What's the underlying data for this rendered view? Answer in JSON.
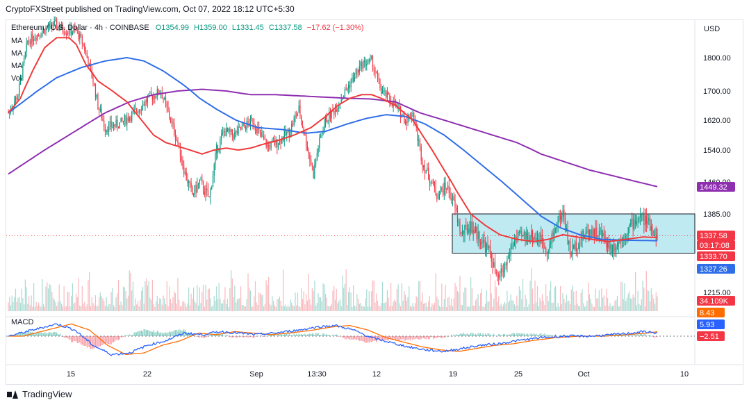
{
  "header": {
    "text": "CryptoFXStreet published on TradingView.com, Oct 07, 2022 18:12 UTC+5:30"
  },
  "legend": {
    "symbol": "Ethereum / U.S. Dollar · 4h · COINBASE",
    "open": "O1354.99",
    "high": "H1359.00",
    "low": "L1331.45",
    "close": "C1337.58",
    "change": "−17.62 (−1.30%)",
    "indicators": [
      "MA",
      "MA",
      "MA",
      "Vol"
    ]
  },
  "footer": {
    "brand": "TradingView"
  },
  "price_axis": {
    "currency": "USD"
  },
  "macd_label": "MACD",
  "colors": {
    "up": "#089981",
    "down": "#f23645",
    "ma_red": "#ef3a3a",
    "ma_blue": "#2f6ee8",
    "ma_purple": "#8e2fb0",
    "box_fill": "#bfeaf2",
    "macd_line": "#2962ff",
    "signal_line": "#ff6d00"
  },
  "chart_data": {
    "type": "candlestick",
    "ylim": [
      1180,
      1905
    ],
    "yticks": [
      "1800.00",
      "1700.00",
      "1620.00",
      "1540.00",
      "1460.00",
      "1385.00",
      "1215.00"
    ],
    "xticks": [
      "15",
      "22",
      "Sep",
      "13:30",
      "12",
      "19",
      "25",
      "Oct",
      "10"
    ],
    "price_tags": [
      {
        "label": "1449.32",
        "value": 1449.32,
        "color": "#8e2fb0"
      },
      {
        "label": "1337.58",
        "value": 1337.58,
        "color": "#f23645"
      },
      {
        "label": "03:17:08",
        "value": null,
        "color": "#f23645"
      },
      {
        "label": "1333.70",
        "value": 1333.7,
        "color": "#f23645"
      },
      {
        "label": "1327.26",
        "value": 1327.26,
        "color": "#2f6ee8"
      },
      {
        "label": "34.109K",
        "value": null,
        "color": "#f23645"
      }
    ],
    "macd_tags": [
      {
        "label": "8.43",
        "color": "#ff6d00"
      },
      {
        "label": "5.93",
        "color": "#2962ff"
      },
      {
        "label": "−2.51",
        "color": "#f23645"
      }
    ],
    "range_box": {
      "low": 1300,
      "high": 1385
    },
    "price_anchors": [
      [
        0,
        1640
      ],
      [
        8,
        1690
      ],
      [
        16,
        1850
      ],
      [
        28,
        1880
      ],
      [
        38,
        1900
      ],
      [
        48,
        1880
      ],
      [
        56,
        1880
      ],
      [
        62,
        1840
      ],
      [
        70,
        1730
      ],
      [
        74,
        1660
      ],
      [
        80,
        1600
      ],
      [
        92,
        1610
      ],
      [
        104,
        1640
      ],
      [
        116,
        1680
      ],
      [
        126,
        1700
      ],
      [
        134,
        1620
      ],
      [
        140,
        1560
      ],
      [
        146,
        1480
      ],
      [
        152,
        1430
      ],
      [
        158,
        1460
      ],
      [
        166,
        1420
      ],
      [
        172,
        1540
      ],
      [
        178,
        1590
      ],
      [
        186,
        1580
      ],
      [
        194,
        1600
      ],
      [
        202,
        1620
      ],
      [
        208,
        1580
      ],
      [
        214,
        1550
      ],
      [
        222,
        1560
      ],
      [
        232,
        1590
      ],
      [
        240,
        1650
      ],
      [
        246,
        1560
      ],
      [
        252,
        1480
      ],
      [
        256,
        1550
      ],
      [
        262,
        1620
      ],
      [
        270,
        1650
      ],
      [
        280,
        1710
      ],
      [
        292,
        1780
      ],
      [
        300,
        1790
      ],
      [
        308,
        1700
      ],
      [
        314,
        1680
      ],
      [
        322,
        1650
      ],
      [
        328,
        1620
      ],
      [
        334,
        1640
      ],
      [
        342,
        1510
      ],
      [
        348,
        1470
      ],
      [
        354,
        1430
      ],
      [
        362,
        1450
      ],
      [
        368,
        1410
      ],
      [
        374,
        1340
      ],
      [
        382,
        1360
      ],
      [
        390,
        1330
      ],
      [
        398,
        1300
      ],
      [
        404,
        1240
      ],
      [
        410,
        1270
      ],
      [
        418,
        1330
      ],
      [
        430,
        1340
      ],
      [
        440,
        1330
      ],
      [
        446,
        1305
      ],
      [
        452,
        1360
      ],
      [
        458,
        1390
      ],
      [
        464,
        1300
      ],
      [
        472,
        1330
      ],
      [
        480,
        1350
      ],
      [
        490,
        1340
      ],
      [
        498,
        1310
      ],
      [
        506,
        1330
      ],
      [
        514,
        1360
      ],
      [
        522,
        1380
      ],
      [
        530,
        1360
      ],
      [
        536,
        1336
      ]
    ],
    "ma_red_anchors": [
      [
        0,
        1640
      ],
      [
        10,
        1680
      ],
      [
        20,
        1760
      ],
      [
        30,
        1830
      ],
      [
        40,
        1860
      ],
      [
        50,
        1860
      ],
      [
        56,
        1840
      ],
      [
        64,
        1780
      ],
      [
        74,
        1730
      ],
      [
        86,
        1700
      ],
      [
        98,
        1670
      ],
      [
        110,
        1620
      ],
      [
        120,
        1580
      ],
      [
        130,
        1560
      ],
      [
        140,
        1550
      ],
      [
        150,
        1540
      ],
      [
        160,
        1530
      ],
      [
        170,
        1540
      ],
      [
        180,
        1545
      ],
      [
        190,
        1540
      ],
      [
        200,
        1545
      ],
      [
        210,
        1555
      ],
      [
        222,
        1565
      ],
      [
        236,
        1580
      ],
      [
        250,
        1600
      ],
      [
        262,
        1630
      ],
      [
        272,
        1660
      ],
      [
        282,
        1680
      ],
      [
        292,
        1690
      ],
      [
        300,
        1690
      ],
      [
        308,
        1680
      ],
      [
        320,
        1660
      ],
      [
        334,
        1620
      ],
      [
        346,
        1560
      ],
      [
        358,
        1500
      ],
      [
        370,
        1440
      ],
      [
        382,
        1385
      ],
      [
        394,
        1360
      ],
      [
        406,
        1340
      ],
      [
        420,
        1330
      ],
      [
        434,
        1325
      ],
      [
        446,
        1330
      ],
      [
        458,
        1340
      ],
      [
        470,
        1335
      ],
      [
        482,
        1330
      ],
      [
        496,
        1325
      ],
      [
        510,
        1330
      ],
      [
        524,
        1335
      ],
      [
        536,
        1334
      ]
    ],
    "ma_blue_anchors": [
      [
        0,
        1640
      ],
      [
        20,
        1690
      ],
      [
        40,
        1740
      ],
      [
        60,
        1770
      ],
      [
        80,
        1790
      ],
      [
        98,
        1800
      ],
      [
        112,
        1790
      ],
      [
        128,
        1760
      ],
      [
        144,
        1720
      ],
      [
        158,
        1680
      ],
      [
        172,
        1650
      ],
      [
        188,
        1620
      ],
      [
        206,
        1600
      ],
      [
        226,
        1595
      ],
      [
        246,
        1585
      ],
      [
        262,
        1590
      ],
      [
        280,
        1610
      ],
      [
        296,
        1625
      ],
      [
        312,
        1635
      ],
      [
        328,
        1630
      ],
      [
        344,
        1610
      ],
      [
        360,
        1580
      ],
      [
        376,
        1540
      ],
      [
        392,
        1500
      ],
      [
        408,
        1460
      ],
      [
        424,
        1420
      ],
      [
        440,
        1380
      ],
      [
        456,
        1355
      ],
      [
        472,
        1340
      ],
      [
        490,
        1330
      ],
      [
        510,
        1328
      ],
      [
        536,
        1327
      ]
    ],
    "ma_purple_anchors": [
      [
        0,
        1480
      ],
      [
        20,
        1520
      ],
      [
        40,
        1560
      ],
      [
        60,
        1600
      ],
      [
        80,
        1640
      ],
      [
        100,
        1670
      ],
      [
        120,
        1690
      ],
      [
        140,
        1700
      ],
      [
        160,
        1705
      ],
      [
        180,
        1700
      ],
      [
        200,
        1690
      ],
      [
        220,
        1690
      ],
      [
        250,
        1685
      ],
      [
        280,
        1680
      ],
      [
        300,
        1678
      ],
      [
        320,
        1670
      ],
      [
        340,
        1640
      ],
      [
        360,
        1620
      ],
      [
        380,
        1600
      ],
      [
        400,
        1580
      ],
      [
        420,
        1560
      ],
      [
        440,
        1530
      ],
      [
        460,
        1510
      ],
      [
        480,
        1490
      ],
      [
        500,
        1475
      ],
      [
        520,
        1460
      ],
      [
        536,
        1449
      ]
    ],
    "macd_anchors": [
      [
        0,
        0
      ],
      [
        20,
        4
      ],
      [
        40,
        8
      ],
      [
        55,
        4
      ],
      [
        70,
        -6
      ],
      [
        85,
        -12
      ],
      [
        100,
        -11
      ],
      [
        115,
        -6
      ],
      [
        130,
        -3
      ],
      [
        145,
        2
      ],
      [
        160,
        1
      ],
      [
        175,
        3
      ],
      [
        190,
        2
      ],
      [
        205,
        1
      ],
      [
        220,
        2
      ],
      [
        240,
        4
      ],
      [
        255,
        6
      ],
      [
        270,
        7
      ],
      [
        285,
        4
      ],
      [
        300,
        -1
      ],
      [
        315,
        -4
      ],
      [
        330,
        -7
      ],
      [
        345,
        -9
      ],
      [
        360,
        -10
      ],
      [
        375,
        -8
      ],
      [
        390,
        -6
      ],
      [
        405,
        -5
      ],
      [
        420,
        -3
      ],
      [
        440,
        -1
      ],
      [
        460,
        0
      ],
      [
        480,
        0
      ],
      [
        500,
        1
      ],
      [
        515,
        2
      ],
      [
        525,
        3
      ],
      [
        536,
        2
      ]
    ]
  }
}
